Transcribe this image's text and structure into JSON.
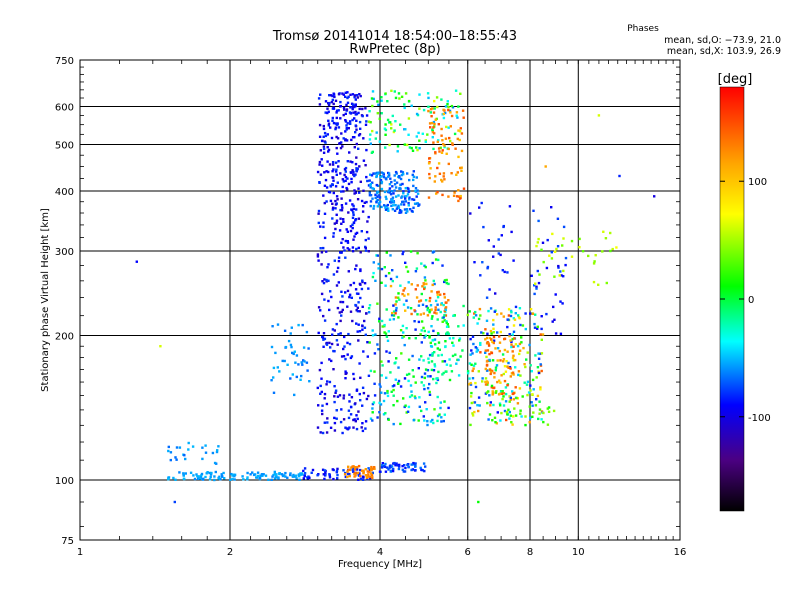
{
  "chart_data": {
    "type": "scatter",
    "title": "Tromsø 20141014 18:54:00–18:55:43",
    "subtitle": "RwPretec (8p)",
    "xlabel": "Frequency [MHz]",
    "ylabel": "Stationary phase Virtual Height [km]",
    "x_scale": "log",
    "y_scale": "log",
    "xlim": [
      1,
      16
    ],
    "ylim": [
      75,
      750
    ],
    "x_ticks": [
      1,
      2,
      4,
      6,
      8,
      10,
      16
    ],
    "y_ticks": [
      75,
      100,
      200,
      300,
      400,
      500,
      600,
      750
    ],
    "grid": true,
    "phases": {
      "title": "Phases",
      "line_o": "mean, sd,O: −73.9, 21.0",
      "line_x": "mean, sd,X: 103.9, 26.9"
    },
    "colorbar": {
      "label": "[deg]",
      "range": [
        -180,
        180
      ],
      "ticks": [
        100,
        0,
        -100
      ],
      "colors": [
        "#ff0000",
        "#ffa500",
        "#ffff00",
        "#00ff00",
        "#00ffff",
        "#0000ff",
        "#4b0082",
        "#000000"
      ]
    },
    "clusters": [
      {
        "f": [
          1.5,
          2.8
        ],
        "h": [
          100,
          104
        ],
        "phase": [
          -60,
          -40
        ],
        "n": 120
      },
      {
        "f": [
          2.8,
          3.9
        ],
        "h": [
          100,
          106
        ],
        "phase": [
          -110,
          -70
        ],
        "n": 60
      },
      {
        "f": [
          3.4,
          3.9
        ],
        "h": [
          101,
          107
        ],
        "phase": [
          130,
          150
        ],
        "n": 45
      },
      {
        "f": [
          4.0,
          5.0
        ],
        "h": [
          104,
          109
        ],
        "phase": [
          -100,
          -60
        ],
        "n": 55
      },
      {
        "f": [
          1.5,
          1.7
        ],
        "h": [
          108,
          120
        ],
        "phase": [
          -70,
          -40
        ],
        "n": 14
      },
      {
        "f": [
          1.75,
          1.9
        ],
        "h": [
          108,
          118
        ],
        "phase": [
          -60,
          -40
        ],
        "n": 10
      },
      {
        "f": [
          2.4,
          2.9
        ],
        "h": [
          150,
          215
        ],
        "phase": [
          -70,
          -40
        ],
        "n": 45
      },
      {
        "f": [
          3.0,
          3.8
        ],
        "h": [
          125,
          650
        ],
        "phase": [
          -120,
          -80
        ],
        "n": 430
      },
      {
        "f": [
          3.1,
          3.6
        ],
        "h": [
          300,
          650
        ],
        "phase": [
          -115,
          -85
        ],
        "n": 140
      },
      {
        "f": [
          3.8,
          4.8
        ],
        "h": [
          360,
          440
        ],
        "phase": [
          -90,
          -40
        ],
        "n": 180
      },
      {
        "f": [
          3.8,
          5.5
        ],
        "h": [
          130,
          300
        ],
        "phase": [
          -100,
          60
        ],
        "n": 280
      },
      {
        "f": [
          3.8,
          5.8
        ],
        "h": [
          480,
          650
        ],
        "phase": [
          -60,
          100
        ],
        "n": 120
      },
      {
        "f": [
          4.2,
          5.5
        ],
        "h": [
          220,
          260
        ],
        "phase": [
          120,
          160
        ],
        "n": 50
      },
      {
        "f": [
          5.0,
          5.9
        ],
        "h": [
          380,
          600
        ],
        "phase": [
          120,
          160
        ],
        "n": 90
      },
      {
        "f": [
          5.0,
          5.9
        ],
        "h": [
          160,
          240
        ],
        "phase": [
          -40,
          40
        ],
        "n": 60
      },
      {
        "f": [
          6.0,
          8.5
        ],
        "h": [
          130,
          230
        ],
        "phase": [
          -100,
          160
        ],
        "n": 240
      },
      {
        "f": [
          6.5,
          7.5
        ],
        "h": [
          150,
          200
        ],
        "phase": [
          120,
          160
        ],
        "n": 70
      },
      {
        "f": [
          6.0,
          9.5
        ],
        "h": [
          200,
          380
        ],
        "phase": [
          -110,
          -70
        ],
        "n": 70
      },
      {
        "f": [
          6.5,
          9.0
        ],
        "h": [
          130,
          155
        ],
        "phase": [
          40,
          80
        ],
        "n": 40
      },
      {
        "f": [
          8.0,
          12.0
        ],
        "h": [
          250,
          330
        ],
        "phase": [
          60,
          100
        ],
        "n": 35
      }
    ],
    "isolated": [
      {
        "f": 1.3,
        "h": 285,
        "phase": -100
      },
      {
        "f": 1.45,
        "h": 190,
        "phase": 90
      },
      {
        "f": 1.55,
        "h": 90,
        "phase": -80
      },
      {
        "f": 11.0,
        "h": 575,
        "phase": 90
      },
      {
        "f": 12.1,
        "h": 430,
        "phase": -90
      },
      {
        "f": 14.2,
        "h": 390,
        "phase": -110
      },
      {
        "f": 11.6,
        "h": 300,
        "phase": 60
      },
      {
        "f": 8.6,
        "h": 450,
        "phase": 130
      },
      {
        "f": 6.3,
        "h": 90,
        "phase": 40
      }
    ]
  }
}
